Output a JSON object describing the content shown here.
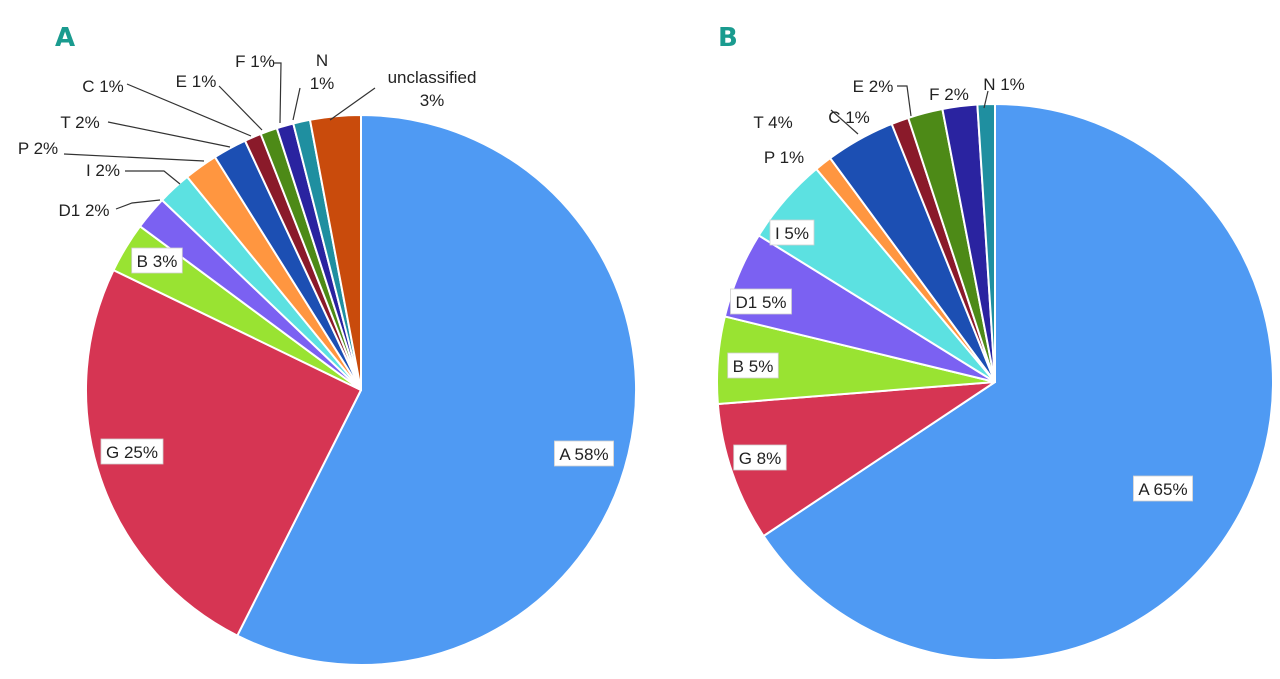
{
  "chart_data": [
    {
      "type": "pie",
      "panel": "A",
      "start": "top",
      "direction": "clockwise",
      "slices": [
        {
          "name": "A",
          "value": 58,
          "label": "A 58%",
          "color": "#4f9af3"
        },
        {
          "name": "G",
          "value": 25,
          "label": "G 25%",
          "color": "#d63553"
        },
        {
          "name": "B",
          "value": 3,
          "label": "B 3%",
          "color": "#99e332"
        },
        {
          "name": "D1",
          "value": 2,
          "label": "D1 2%",
          "color": "#7b61f2"
        },
        {
          "name": "I",
          "value": 2,
          "label": "I 2%",
          "color": "#5ce1e1"
        },
        {
          "name": "P",
          "value": 2,
          "label": "P 2%",
          "color": "#ff9640"
        },
        {
          "name": "T",
          "value": 2,
          "label": "T 2%",
          "color": "#1c4fb3"
        },
        {
          "name": "C",
          "value": 1,
          "label": "C 1%",
          "color": "#8a1a2a"
        },
        {
          "name": "E",
          "value": 1,
          "label": "E 1%",
          "color": "#4d8a17"
        },
        {
          "name": "F",
          "value": 1,
          "label": "F 1%",
          "color": "#2a23a0"
        },
        {
          "name": "N",
          "value": 1,
          "label": "N\n1%",
          "color": "#1f8fa0"
        },
        {
          "name": "unclassified",
          "value": 3,
          "label": "unclassified\n3%",
          "color": "#c94b0c"
        }
      ]
    },
    {
      "type": "pie",
      "panel": "B",
      "start": "top",
      "direction": "clockwise",
      "slices": [
        {
          "name": "A",
          "value": 65,
          "label": "A 65%",
          "color": "#4f9af3"
        },
        {
          "name": "G",
          "value": 8,
          "label": "G 8%",
          "color": "#d63553"
        },
        {
          "name": "B",
          "value": 5,
          "label": "B 5%",
          "color": "#99e332"
        },
        {
          "name": "D1",
          "value": 5,
          "label": "D1 5%",
          "color": "#7b61f2"
        },
        {
          "name": "I",
          "value": 5,
          "label": "I 5%",
          "color": "#5ce1e1"
        },
        {
          "name": "P",
          "value": 1,
          "label": "P 1%",
          "color": "#ff9640"
        },
        {
          "name": "T",
          "value": 4,
          "label": "T 4%",
          "color": "#1c4fb3"
        },
        {
          "name": "C",
          "value": 1,
          "label": "C 1%",
          "color": "#8a1a2a"
        },
        {
          "name": "E",
          "value": 2,
          "label": "E 2%",
          "color": "#4d8a17"
        },
        {
          "name": "F",
          "value": 2,
          "label": "F 2%",
          "color": "#2a23a0"
        },
        {
          "name": "N",
          "value": 1,
          "label": "N 1%",
          "color": "#1f8fa0"
        }
      ]
    }
  ],
  "panels": {
    "a": {
      "letter": "A",
      "color": "#1a9b8f"
    },
    "b": {
      "letter": "B",
      "color": "#1a9b8f"
    }
  }
}
